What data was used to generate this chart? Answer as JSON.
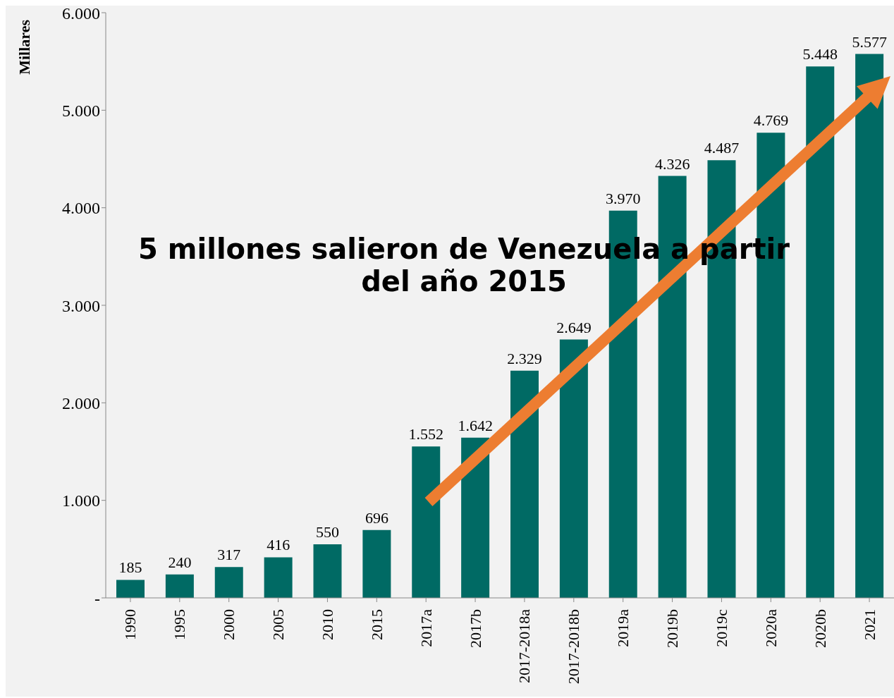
{
  "chart_data": {
    "type": "bar",
    "ylabel": "Millares",
    "categories": [
      "1990",
      "1995",
      "2000",
      "2005",
      "2010",
      "2015",
      "2017a",
      "2017b",
      "2017-2018a",
      "2017-2018b",
      "2019a",
      "2019b",
      "2019c",
      "2020a",
      "2020b",
      "2021"
    ],
    "values": [
      185,
      240,
      317,
      416,
      550,
      696,
      1552,
      1642,
      2329,
      2649,
      3970,
      4326,
      4487,
      4769,
      5448,
      5577
    ],
    "value_labels": [
      "185",
      "240",
      "317",
      "416",
      "550",
      "696",
      "1.552",
      "1.642",
      "2.329",
      "2.649",
      "3.970",
      "4.326",
      "4.487",
      "4.769",
      "5.448",
      "5.577"
    ],
    "color": "#006a64",
    "ylim": [
      0,
      6000
    ],
    "yticks": [
      {
        "value": 0,
        "label": "-"
      },
      {
        "value": 1000,
        "label": "1.000"
      },
      {
        "value": 2000,
        "label": "2.000"
      },
      {
        "value": 3000,
        "label": "3.000"
      },
      {
        "value": 4000,
        "label": "4.000"
      },
      {
        "value": 5000,
        "label": "5.000"
      },
      {
        "value": 6000,
        "label": "6.000"
      }
    ],
    "grid": false,
    "annotations": [
      "5 millones salieron de Venezuela a partir del año 2015"
    ]
  }
}
